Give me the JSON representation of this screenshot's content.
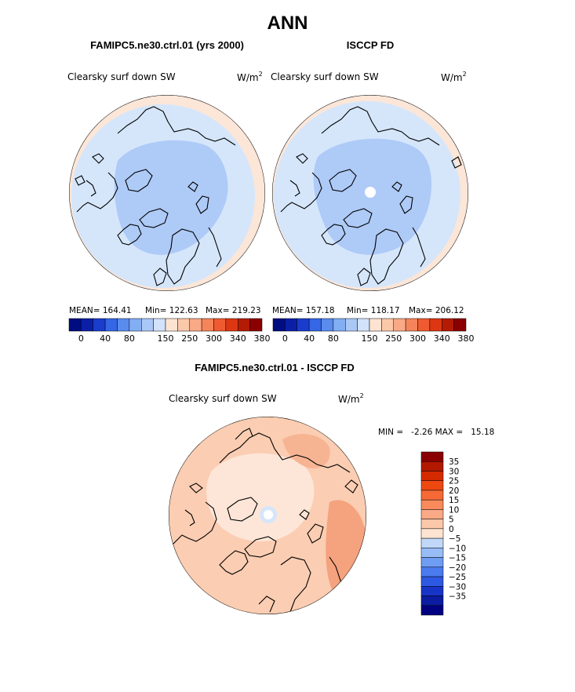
{
  "figure": {
    "title": "ANN",
    "diff_title": "FAMIPC5.ne30.ctrl.01 - ISCCP FD"
  },
  "panels": [
    {
      "title": "FAMIPC5.ne30.ctrl.01 (yrs 2000)",
      "variable": "Clearsky surf down SW",
      "unit_base": "W/m",
      "unit_exp": "2",
      "mean": "MEAN= 164.41",
      "min": "Min= 122.63",
      "max": "Max= 219.23"
    },
    {
      "title": "ISCCP FD",
      "variable": "Clearsky surf down SW",
      "unit_base": "W/m",
      "unit_exp": "2",
      "mean": "MEAN= 157.18",
      "min": "Min= 118.17",
      "max": "Max= 206.12"
    },
    {
      "variable": "Clearsky surf down SW",
      "unit_base": "W/m",
      "unit_exp": "2",
      "minmax": "MIN =   -2.26 MAX =   15.18"
    }
  ],
  "chart_data": [
    {
      "type": "heatmap",
      "projection": "north-polar-stereographic",
      "title": "FAMIPC5.ne30.ctrl.01 (yrs 2000)",
      "variable": "Clearsky surf down SW",
      "units": "W/m^2",
      "mean": 164.41,
      "min": 122.63,
      "max": 219.23,
      "colorbar_levels": [
        0,
        20,
        40,
        60,
        80,
        100,
        120,
        150,
        200,
        250,
        280,
        300,
        320,
        340,
        360,
        380
      ],
      "colorbar_tick_labels": [
        "0",
        "40",
        "80",
        "150",
        "250",
        "300",
        "340",
        "380"
      ]
    },
    {
      "type": "heatmap",
      "projection": "north-polar-stereographic",
      "title": "ISCCP FD",
      "variable": "Clearsky surf down SW",
      "units": "W/m^2",
      "mean": 157.18,
      "min": 118.17,
      "max": 206.12,
      "colorbar_levels": [
        0,
        20,
        40,
        60,
        80,
        100,
        120,
        150,
        200,
        250,
        280,
        300,
        320,
        340,
        360,
        380
      ],
      "colorbar_tick_labels": [
        "0",
        "40",
        "80",
        "150",
        "250",
        "300",
        "340",
        "380"
      ]
    },
    {
      "type": "heatmap",
      "projection": "north-polar-stereographic",
      "title": "FAMIPC5.ne30.ctrl.01 - ISCCP FD",
      "variable": "Clearsky surf down SW",
      "units": "W/m^2",
      "min": -2.26,
      "max": 15.18,
      "colorbar_tick_labels": [
        "35",
        "30",
        "25",
        "20",
        "15",
        "10",
        "5",
        "0",
        "-5",
        "-10",
        "-15",
        "-20",
        "-25",
        "-30",
        "-35"
      ]
    }
  ],
  "colors": {
    "pos_bar": [
      "#8a0000",
      "#b31800",
      "#d42a00",
      "#ee4811",
      "#f56a35",
      "#f88a5c",
      "#f9a985",
      "#fbc8aa",
      "#fde4d2"
    ],
    "neg_bar": [
      "#e6f0fb",
      "#c1d8f8",
      "#98bdf6",
      "#6e9df3",
      "#4a7bef",
      "#2d58e2",
      "#1834c7",
      "#0b1ca0",
      "#000080"
    ],
    "seq_bar": [
      "#000d80",
      "#0b1fa6",
      "#1a3ccc",
      "#3466e6",
      "#5a8cee",
      "#82aef3",
      "#aac8f6",
      "#d2e2fa",
      "#fde4d2",
      "#fbc8aa",
      "#f9a985",
      "#f6845a",
      "#f05a30",
      "#dc3712",
      "#b41b05",
      "#8a0000"
    ],
    "ocean_light": "#d5e6fb",
    "ocean_mid": "#aecaf7",
    "rim": "#fce6d8",
    "diff_base": "#fbcdb2",
    "diff_light": "#fde6d7",
    "diff_dark": "#f5a27e"
  }
}
